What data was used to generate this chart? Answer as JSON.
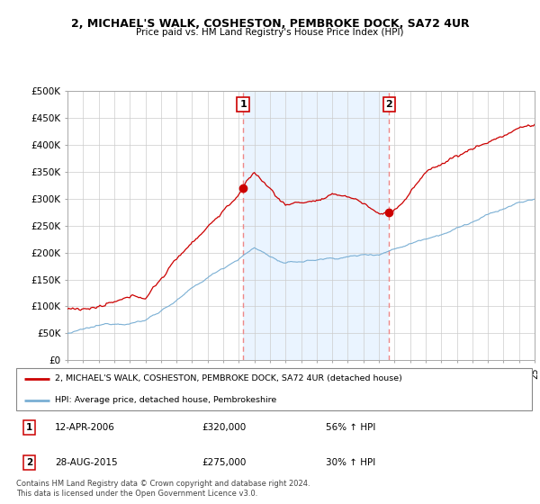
{
  "title": "2, MICHAEL'S WALK, COSHESTON, PEMBROKE DOCK, SA72 4UR",
  "subtitle": "Price paid vs. HM Land Registry's House Price Index (HPI)",
  "ylim": [
    0,
    500000
  ],
  "yticks": [
    0,
    50000,
    100000,
    150000,
    200000,
    250000,
    300000,
    350000,
    400000,
    450000,
    500000
  ],
  "ytick_labels": [
    "£0",
    "£50K",
    "£100K",
    "£150K",
    "£200K",
    "£250K",
    "£300K",
    "£350K",
    "£400K",
    "£450K",
    "£500K"
  ],
  "xlim_start": 1995,
  "xlim_end": 2025,
  "sale1_date_x": 2006.28,
  "sale1_price": 320000,
  "sale2_date_x": 2015.65,
  "sale2_price": 275000,
  "legend_line1": "2, MICHAEL'S WALK, COSHESTON, PEMBROKE DOCK, SA72 4UR (detached house)",
  "legend_line2": "HPI: Average price, detached house, Pembrokeshire",
  "annotation1_date": "12-APR-2006",
  "annotation1_price": "£320,000",
  "annotation1_hpi": "56% ↑ HPI",
  "annotation2_date": "28-AUG-2015",
  "annotation2_price": "£275,000",
  "annotation2_hpi": "30% ↑ HPI",
  "footnote": "Contains HM Land Registry data © Crown copyright and database right 2024.\nThis data is licensed under the Open Government Licence v3.0.",
  "line_color_red": "#cc0000",
  "line_color_blue": "#7aafd4",
  "vline_color": "#ee8888",
  "shade_color": "#ddeeff",
  "bg_color": "#ffffff",
  "grid_color": "#cccccc"
}
